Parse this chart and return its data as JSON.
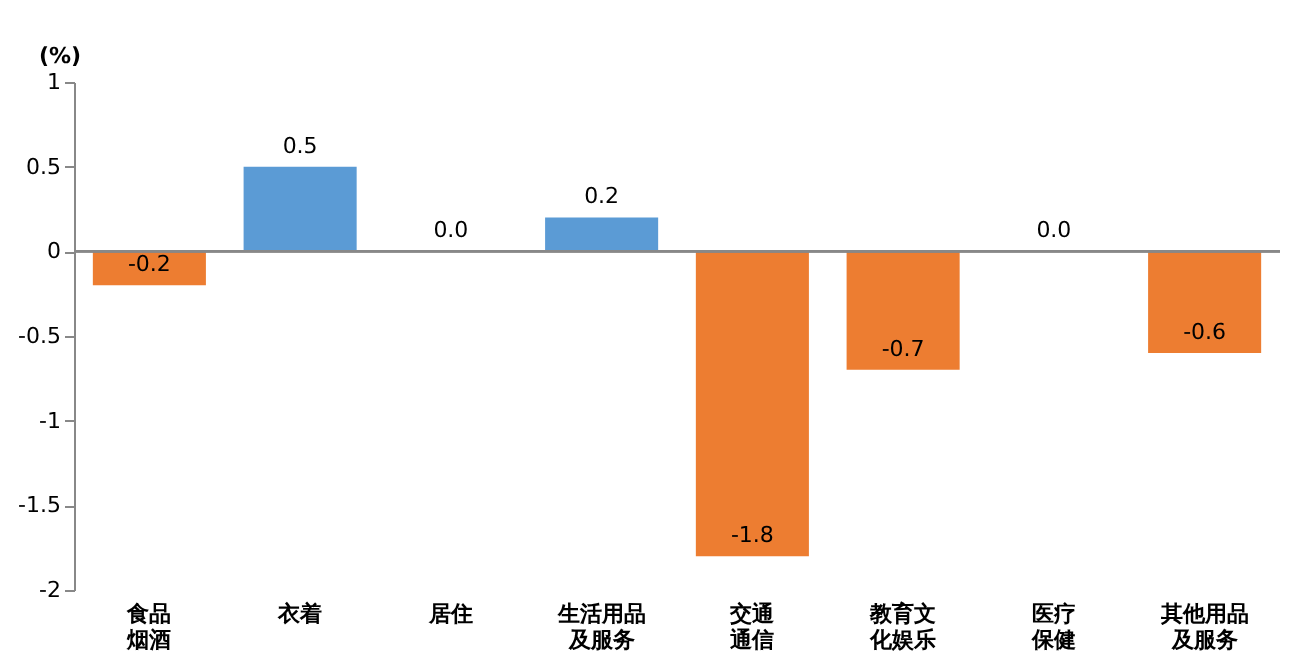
{
  "chart_data": {
    "type": "bar",
    "ylabel": "(%)",
    "categories": [
      "食品烟酒",
      "衣着",
      "居住",
      "生活用品及服务",
      "交通通信",
      "教育文化娱乐",
      "医疗保健",
      "其他用品及服务"
    ],
    "values": [
      -0.2,
      0.5,
      0.0,
      0.2,
      -1.8,
      -0.7,
      0.0,
      -0.6
    ],
    "colors": [
      "#ed7d31",
      "#5b9bd5",
      "#5b9bd5",
      "#5b9bd5",
      "#ed7d31",
      "#ed7d31",
      "#5b9bd5",
      "#ed7d31"
    ],
    "value_labels": [
      "-0.2",
      "0.5",
      "0.0",
      "0.2",
      "-1.8",
      "-0.7",
      "0.0",
      "-0.6"
    ],
    "ylim": [
      -2,
      1
    ],
    "yticks": [
      1,
      0.5,
      0,
      -0.5,
      -1,
      -1.5,
      -2
    ]
  }
}
